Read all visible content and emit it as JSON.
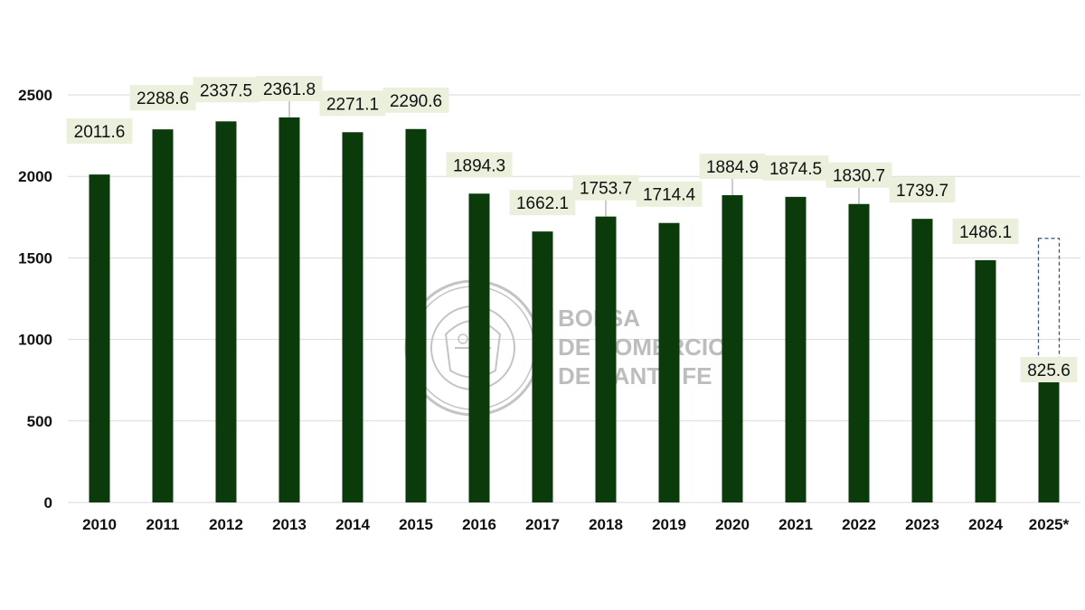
{
  "chart_data": {
    "type": "bar",
    "categories": [
      "2010",
      "2011",
      "2012",
      "2013",
      "2014",
      "2015",
      "2016",
      "2017",
      "2018",
      "2019",
      "2020",
      "2021",
      "2022",
      "2023",
      "2024",
      "2025*"
    ],
    "values": [
      2011.6,
      2288.6,
      2337.5,
      2361.8,
      2271.1,
      2290.6,
      1894.3,
      1662.1,
      1753.7,
      1714.4,
      1884.9,
      1874.5,
      1830.7,
      1739.7,
      1486.1,
      825.6
    ],
    "data_labels": [
      "2011.6",
      "2288.6",
      "2337.5",
      "2361.8",
      "2271.1",
      "2290.6",
      "1894.3",
      "1662.1",
      "1753.7",
      "1714.4",
      "1884.9",
      "1874.5",
      "1830.7",
      "1739.7",
      "1486.1",
      "825.6"
    ],
    "projected_outline": {
      "category": "2025*",
      "value": 1620
    },
    "title": "",
    "xlabel": "",
    "ylabel": "",
    "ylim": [
      0,
      2500
    ],
    "yticks": [
      0,
      500,
      1000,
      1500,
      2000,
      2500
    ],
    "y_tick_labels": [
      "0",
      "500",
      "1000",
      "1500",
      "2000",
      "2500"
    ],
    "grid": true,
    "legend": "none",
    "colors": {
      "bar": "#0b3a0b",
      "label_bg": "#eaf0dc",
      "grid": "#d9d9d9",
      "outline": "#2e5a7a"
    }
  },
  "watermark": {
    "lines": [
      "BOLSA",
      "DE COMERCIO",
      "DE SANTA FE"
    ],
    "seal_text": "BOLSA DE COMERCIO DE SANTA FE"
  }
}
